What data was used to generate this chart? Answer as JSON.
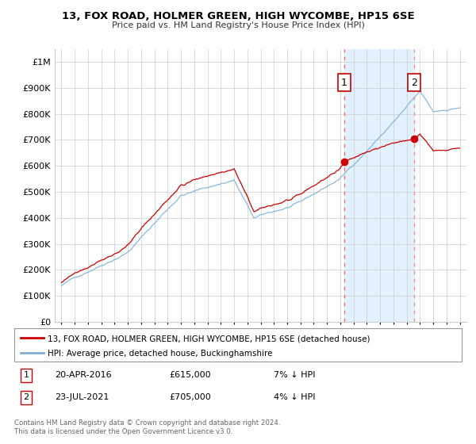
{
  "title": "13, FOX ROAD, HOLMER GREEN, HIGH WYCOMBE, HP15 6SE",
  "subtitle": "Price paid vs. HM Land Registry's House Price Index (HPI)",
  "legend_line1": "13, FOX ROAD, HOLMER GREEN, HIGH WYCOMBE, HP15 6SE (detached house)",
  "legend_line2": "HPI: Average price, detached house, Buckinghamshire",
  "footnote": "Contains HM Land Registry data © Crown copyright and database right 2024.\nThis data is licensed under the Open Government Licence v3.0.",
  "sale1_label": "1",
  "sale1_date": "20-APR-2016",
  "sale1_price": "£615,000",
  "sale1_note": "7% ↓ HPI",
  "sale2_label": "2",
  "sale2_date": "23-JUL-2021",
  "sale2_price": "£705,000",
  "sale2_note": "4% ↓ HPI",
  "sale1_x": 2016.3,
  "sale1_y_red": 615000,
  "sale2_x": 2021.55,
  "sale2_y_red": 705000,
  "red_color": "#cc0000",
  "blue_color": "#7eb0d5",
  "shade_color": "#ddeeff",
  "ylim_min": 0,
  "ylim_max": 1050000,
  "xlim_min": 1994.5,
  "xlim_max": 2025.5
}
